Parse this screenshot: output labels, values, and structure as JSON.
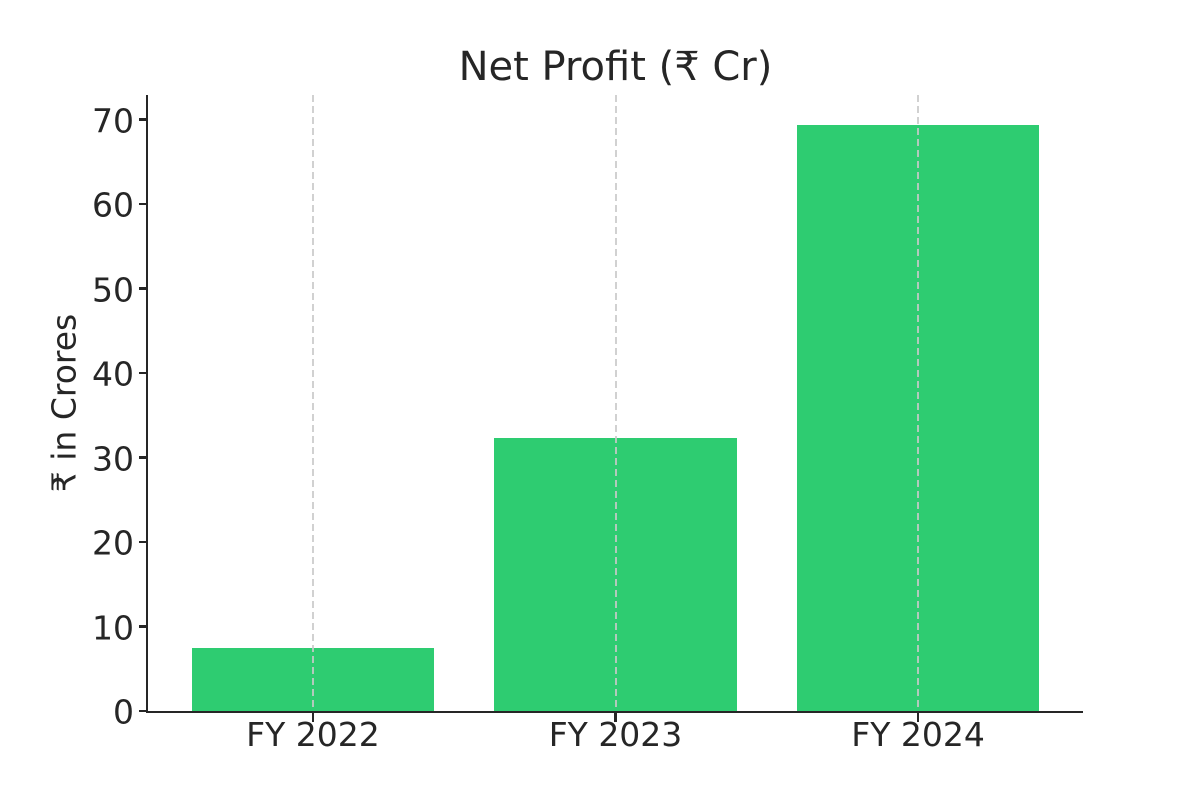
{
  "chart_data": {
    "type": "bar",
    "title": "Net Profit (₹ Cr)",
    "xlabel": "",
    "ylabel": "₹ in Crores",
    "categories": [
      "FY 2022",
      "FY 2023",
      "FY 2024"
    ],
    "values": [
      7.4,
      32.3,
      69.4
    ],
    "yticks": [
      0,
      10,
      20,
      30,
      40,
      50,
      60,
      70
    ],
    "ylim": [
      0,
      72.9
    ],
    "xlim": [
      -0.545,
      2.545
    ],
    "bar_width": 0.8,
    "grid": "vertical dashed lines at category centers, drawn over bars",
    "legend": "none",
    "colors": {
      "bar": "#2ecc71",
      "grid": "#c9c9c9",
      "axis": "#262626",
      "text": "#262626",
      "background": "#ffffff"
    }
  }
}
